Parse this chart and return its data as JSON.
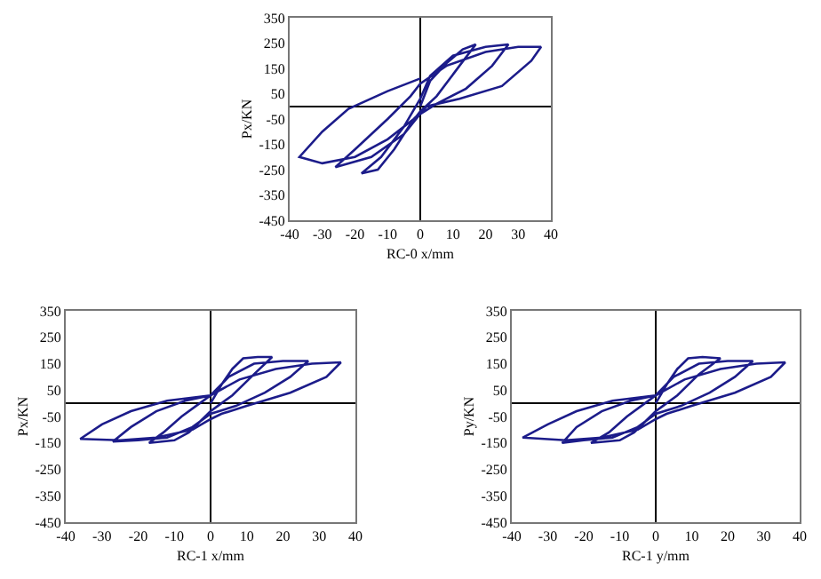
{
  "chart_data": [
    {
      "type": "line",
      "xlabel": "RC-0 x/mm",
      "ylabel": "Px/KN",
      "xlim": [
        -40,
        40
      ],
      "xticks": [
        -40,
        -30,
        -20,
        -10,
        0,
        10,
        20,
        30,
        40
      ],
      "ylim": [
        -450,
        350
      ],
      "yticks": [
        -450,
        -350,
        -250,
        -150,
        -50,
        50,
        150,
        250,
        350
      ],
      "grid": false,
      "legend": false,
      "ref_lines": [
        {
          "axis": "x",
          "value": 0
        }
      ],
      "series": [
        {
          "color": "#1c1c8a",
          "x": [
            0,
            3,
            8,
            13,
            17,
            12,
            5,
            0,
            -3,
            -8,
            -13,
            -18,
            -12,
            -5,
            0,
            3,
            10,
            20,
            27,
            22,
            14,
            5,
            0,
            -5,
            -15,
            -26,
            -20,
            -10,
            -3,
            0,
            8,
            20,
            30,
            37,
            34,
            25,
            12,
            2,
            -2,
            -10,
            -20,
            -30,
            -37,
            -30,
            -22,
            -10,
            0
          ],
          "values": [
            0,
            100,
            170,
            225,
            245,
            160,
            40,
            -20,
            -70,
            -170,
            -250,
            -265,
            -200,
            -80,
            30,
            120,
            200,
            235,
            245,
            160,
            70,
            10,
            -30,
            -110,
            -200,
            -240,
            -170,
            -50,
            40,
            90,
            160,
            215,
            235,
            235,
            180,
            80,
            30,
            0,
            -50,
            -130,
            -200,
            -225,
            -200,
            -100,
            -10,
            60,
            110
          ]
        }
      ]
    },
    {
      "type": "line",
      "xlabel": "RC-1 x/mm",
      "ylabel": "Px/KN",
      "xlim": [
        -40,
        40
      ],
      "xticks": [
        -40,
        -30,
        -20,
        -10,
        0,
        10,
        20,
        30,
        40
      ],
      "ylim": [
        -450,
        350
      ],
      "yticks": [
        -450,
        -350,
        -250,
        -150,
        -50,
        50,
        150,
        250,
        350
      ],
      "grid": false,
      "legend": false,
      "ref_lines": [
        {
          "axis": "x",
          "value": 0
        }
      ],
      "series": [
        {
          "color": "#1c1c8a",
          "x": [
            0,
            3,
            6,
            9,
            13,
            17,
            12,
            6,
            2,
            0,
            -3,
            -6,
            -10,
            -17,
            -13,
            -8,
            -3,
            0,
            5,
            12,
            20,
            27,
            22,
            15,
            7,
            0,
            -5,
            -12,
            -20,
            -27,
            -22,
            -15,
            -7,
            0,
            8,
            18,
            28,
            36,
            32,
            22,
            10,
            3,
            0,
            -5,
            -15,
            -25,
            -36,
            -30,
            -22,
            -12,
            0
          ],
          "values": [
            0,
            70,
            130,
            170,
            175,
            175,
            110,
            30,
            -10,
            -30,
            -70,
            -110,
            -140,
            -150,
            -110,
            -50,
            0,
            30,
            100,
            150,
            160,
            160,
            100,
            40,
            -10,
            -40,
            -90,
            -130,
            -140,
            -145,
            -90,
            -30,
            10,
            30,
            90,
            130,
            150,
            155,
            100,
            40,
            -10,
            -40,
            -60,
            -100,
            -130,
            -140,
            -135,
            -80,
            -30,
            10,
            30
          ]
        }
      ]
    },
    {
      "type": "line",
      "xlabel": "RC-1 y/mm",
      "ylabel": "Py/KN",
      "xlim": [
        -40,
        40
      ],
      "xticks": [
        -40,
        -30,
        -20,
        -10,
        0,
        10,
        20,
        30,
        40
      ],
      "ylim": [
        -450,
        350
      ],
      "yticks": [
        -450,
        -350,
        -250,
        -150,
        -50,
        50,
        150,
        250,
        350
      ],
      "grid": false,
      "legend": false,
      "ref_lines": [
        {
          "axis": "x",
          "value": 0
        }
      ],
      "series": [
        {
          "color": "#1c1c8a",
          "x": [
            0,
            3,
            6,
            9,
            13,
            18,
            12,
            6,
            2,
            0,
            -3,
            -6,
            -10,
            -18,
            -13,
            -8,
            -3,
            0,
            5,
            12,
            20,
            27,
            22,
            15,
            7,
            0,
            -5,
            -12,
            -20,
            -26,
            -22,
            -15,
            -7,
            0,
            8,
            18,
            28,
            36,
            32,
            22,
            10,
            3,
            0,
            -5,
            -15,
            -25,
            -37,
            -30,
            -22,
            -12,
            0
          ],
          "values": [
            0,
            70,
            130,
            170,
            175,
            170,
            110,
            30,
            -10,
            -30,
            -70,
            -110,
            -140,
            -150,
            -110,
            -50,
            0,
            30,
            100,
            150,
            160,
            160,
            100,
            40,
            -10,
            -40,
            -90,
            -130,
            -140,
            -150,
            -90,
            -30,
            10,
            30,
            90,
            130,
            150,
            155,
            100,
            40,
            -10,
            -40,
            -60,
            -100,
            -130,
            -140,
            -130,
            -80,
            -30,
            10,
            30
          ]
        }
      ]
    }
  ]
}
